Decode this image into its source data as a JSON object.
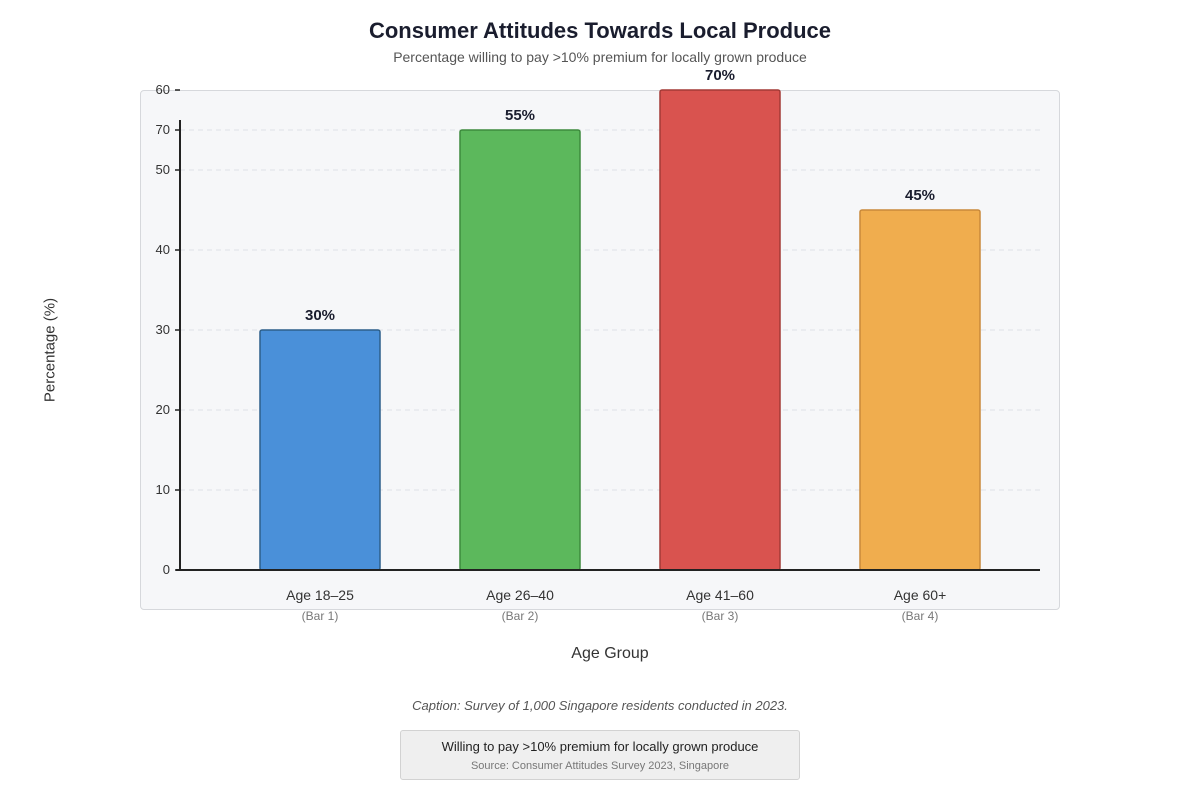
{
  "title": "Consumer Attitudes Towards Local Produce",
  "subtitle": "Percentage willing to pay >10% premium for locally grown produce",
  "caption": "Caption: Survey of 1,000 Singapore residents conducted in 2023.",
  "legend": {
    "label": "Willing to pay >10% premium for locally grown produce",
    "source": "Source: Consumer Attitudes Survey 2023, Singapore"
  },
  "chart_data": {
    "type": "bar",
    "title": "Consumer Attitudes Towards Local Produce",
    "subtitle": "Percentage willing to pay >10% premium for locally grown produce",
    "xlabel": "Age Group",
    "ylabel": "Percentage (%)",
    "categories": [
      "Age 18–25",
      "Age 26–40",
      "Age 41–60",
      "Age 60+"
    ],
    "sublabels": [
      "(Bar 1)",
      "(Bar 2)",
      "(Bar 3)",
      "(Bar 4)"
    ],
    "values": [
      30,
      55,
      70,
      45
    ],
    "data_labels": [
      "30%",
      "55%",
      "70%",
      "45%"
    ],
    "colors": [
      "#4a90d9",
      "#5cb85c",
      "#d9534f",
      "#f0ad4e"
    ],
    "border_colors": [
      "#2c5f8a",
      "#3d8a3d",
      "#a33a36",
      "#c9893a"
    ],
    "yticks": [
      0,
      10,
      20,
      30,
      40,
      50,
      60
    ],
    "extra_tick_label": "70",
    "ylim": [
      0,
      60
    ],
    "grid": true,
    "legend_position": "bottom-center"
  }
}
